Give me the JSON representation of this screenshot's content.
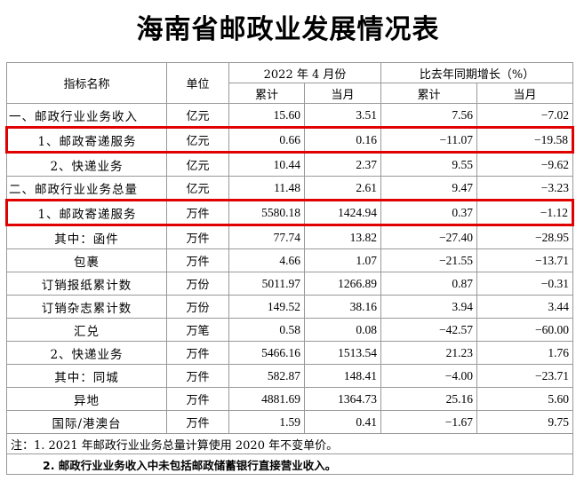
{
  "title": "海南省邮政业发展情况表",
  "header": {
    "indicator": "指标名称",
    "unit": "单位",
    "period": "2022 年 4 月份",
    "growth": "比去年同期增长（%）",
    "cumulative": "累计",
    "month": "当月",
    "cumulative2": "累计",
    "month2": "当月"
  },
  "rows": [
    {
      "name": "一、邮政行业业务收入",
      "unit": "亿元",
      "cum": "15.60",
      "mon": "3.51",
      "gcum": "7.56",
      "gmon": "−7.02"
    },
    {
      "name": "1、邮政寄递服务",
      "unit": "亿元",
      "cum": "0.66",
      "mon": "0.16",
      "gcum": "−11.07",
      "gmon": "−19.58"
    },
    {
      "name": "2、快递业务",
      "unit": "亿元",
      "cum": "10.44",
      "mon": "2.37",
      "gcum": "9.55",
      "gmon": "−9.62"
    },
    {
      "name": "二、邮政行业业务总量",
      "unit": "亿元",
      "cum": "11.48",
      "mon": "2.61",
      "gcum": "9.47",
      "gmon": "−3.23"
    },
    {
      "name": "1、邮政寄递服务",
      "unit": "万件",
      "cum": "5580.18",
      "mon": "1424.94",
      "gcum": "0.37",
      "gmon": "−1.12"
    },
    {
      "name": "其中：函件",
      "unit": "万件",
      "cum": "77.74",
      "mon": "13.82",
      "gcum": "−27.40",
      "gmon": "−28.95"
    },
    {
      "name": "包裹",
      "unit": "万件",
      "cum": "4.66",
      "mon": "1.07",
      "gcum": "−21.55",
      "gmon": "−13.71"
    },
    {
      "name": "订销报纸累计数",
      "unit": "万份",
      "cum": "5011.97",
      "mon": "1266.89",
      "gcum": "0.87",
      "gmon": "−0.31"
    },
    {
      "name": "订销杂志累计数",
      "unit": "万份",
      "cum": "149.52",
      "mon": "38.16",
      "gcum": "3.94",
      "gmon": "3.44"
    },
    {
      "name": "汇兑",
      "unit": "万笔",
      "cum": "0.58",
      "mon": "0.08",
      "gcum": "−42.57",
      "gmon": "−60.00"
    },
    {
      "name": "2、快递业务",
      "unit": "万件",
      "cum": "5466.16",
      "mon": "1513.54",
      "gcum": "21.23",
      "gmon": "1.76"
    },
    {
      "name": "其中：同城",
      "unit": "万件",
      "cum": "582.87",
      "mon": "148.41",
      "gcum": "−4.00",
      "gmon": "−23.71"
    },
    {
      "name": "异地",
      "unit": "万件",
      "cum": "4881.69",
      "mon": "1364.73",
      "gcum": "25.16",
      "gmon": "5.60"
    },
    {
      "name": "国际/港澳台",
      "unit": "万件",
      "cum": "1.59",
      "mon": "0.41",
      "gcum": "−1.67",
      "gmon": "9.75"
    }
  ],
  "notes": {
    "note1": "注：1. 2021 年邮政行业业务总量计算使用 2020 年不变单价。",
    "note2": "2. 邮政行业业务收入中未包括邮政储蓄银行直接营业收入。"
  }
}
